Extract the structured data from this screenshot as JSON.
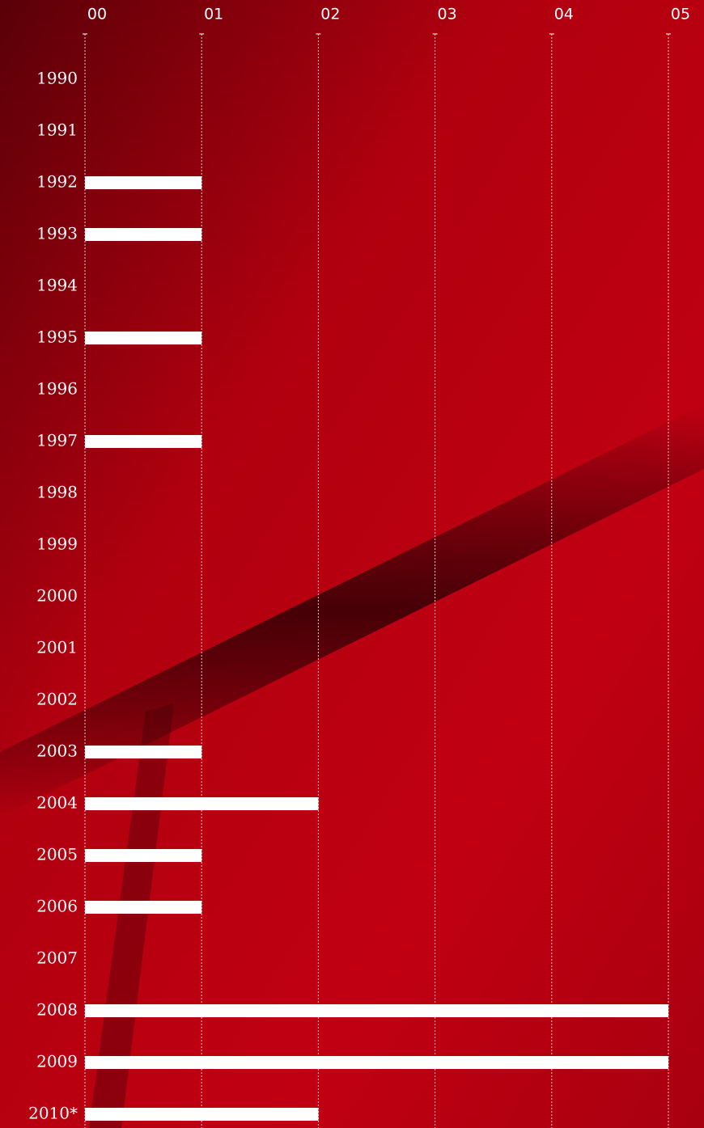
{
  "chart_data": {
    "type": "bar",
    "orientation": "horizontal",
    "categories": [
      "1990",
      "1991",
      "1992",
      "1993",
      "1994",
      "1995",
      "1996",
      "1997",
      "1998",
      "1999",
      "2000",
      "2001",
      "2002",
      "2003",
      "2004",
      "2005",
      "2006",
      "2007",
      "2008",
      "2009",
      "2010*"
    ],
    "values": [
      0,
      0,
      1,
      1,
      0,
      1,
      0,
      1,
      0,
      0,
      0,
      0,
      0,
      1,
      2,
      1,
      1,
      0,
      5,
      5,
      2
    ],
    "color": "#ffffff",
    "xlim": [
      0,
      5
    ],
    "xticks": [
      {
        "value": 0,
        "label": "00"
      },
      {
        "value": 1,
        "label": "01"
      },
      {
        "value": 2,
        "label": "02"
      },
      {
        "value": 3,
        "label": "03"
      },
      {
        "value": 4,
        "label": "04"
      },
      {
        "value": 5,
        "label": "05"
      }
    ],
    "grid": true
  }
}
